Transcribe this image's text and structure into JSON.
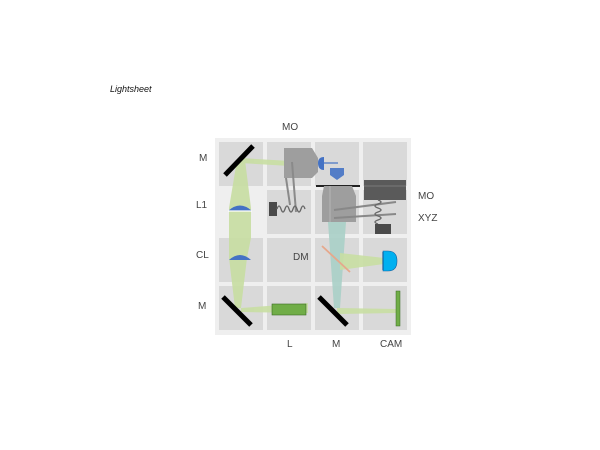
{
  "title": "Lightsheet",
  "labels": {
    "top_mo": "MO",
    "left_m_top": "M",
    "left_l1": "L1",
    "left_cl": "CL",
    "left_m_bottom": "M",
    "right_mo": "MO",
    "right_xyz": "XYZ",
    "inner_dm": "DM",
    "bottom_l": "L",
    "bottom_m": "M",
    "bottom_cam": "CAM"
  },
  "colors": {
    "panel": "#efefef",
    "cell": "#d9d9d9",
    "beam": "#c8dea2",
    "lens": "#4472c4",
    "laser": "#70ad47",
    "camera_chip": "#00b0f0",
    "mirror": "#000000",
    "objective": "#9e9e9e",
    "stage": "#5a5a5a",
    "dichroic": "#e6a88c"
  }
}
